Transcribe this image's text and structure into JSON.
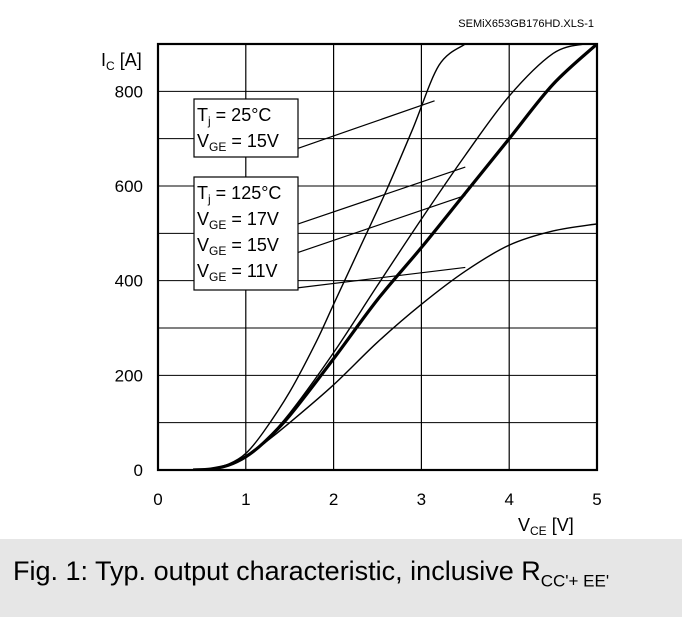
{
  "chart_data": {
    "type": "line",
    "file_id": "SEMiX653GB176HD.XLS-1",
    "xlabel_main": "V",
    "xlabel_sub": "CE",
    "xlabel_unit": " [V]",
    "ylabel_main": "I",
    "ylabel_sub": "C",
    "ylabel_unit": " [A]",
    "xlim": [
      0,
      5
    ],
    "ylim": [
      0,
      900
    ],
    "grid": true,
    "x_ticks": [
      "0",
      "1",
      "2",
      "3",
      "4",
      "5"
    ],
    "y_ticks": [
      "0",
      "200",
      "400",
      "600",
      "800"
    ],
    "annotations": [
      {
        "lines": [
          {
            "main": "T",
            "sub": "j",
            "rest": " = 25°C"
          },
          {
            "main": "V",
            "sub": "GE",
            "rest": " = 15V"
          }
        ]
      },
      {
        "lines": [
          {
            "main": "T",
            "sub": "j",
            "rest": " = 125°C"
          },
          {
            "main": "V",
            "sub": "GE",
            "rest": " = 17V"
          },
          {
            "main": "V",
            "sub": "GE",
            "rest": " = 15V"
          },
          {
            "main": "V",
            "sub": "GE",
            "rest": " = 11V"
          }
        ]
      }
    ],
    "series": [
      {
        "label_ref": "Tj = 25°C, VGE = 15V",
        "bold": false,
        "x": [
          0.4,
          0.6,
          0.8,
          1.0,
          1.2,
          1.5,
          1.8,
          2.0,
          2.3,
          2.6,
          2.9,
          3.2,
          3.5
        ],
        "y": [
          0,
          3,
          12,
          35,
          80,
          165,
          270,
          350,
          470,
          590,
          720,
          855,
          900
        ]
      },
      {
        "label_ref": "Tj = 125°C, VGE = 17V",
        "bold": false,
        "x": [
          0.4,
          0.6,
          0.8,
          1.0,
          1.2,
          1.5,
          2.0,
          2.5,
          3.0,
          3.5,
          4.0,
          4.5,
          4.85
        ],
        "y": [
          0,
          2,
          10,
          28,
          58,
          120,
          248,
          390,
          530,
          665,
          790,
          880,
          900
        ]
      },
      {
        "label_ref": "Tj = 125°C, VGE = 15V",
        "bold": true,
        "x": [
          0.4,
          0.6,
          0.8,
          1.0,
          1.2,
          1.5,
          2.0,
          2.5,
          3.0,
          3.5,
          4.0,
          4.5,
          5.0
        ],
        "y": [
          0,
          2,
          10,
          28,
          57,
          115,
          235,
          360,
          470,
          585,
          700,
          815,
          900
        ]
      },
      {
        "label_ref": "Tj = 125°C, VGE = 11V",
        "bold": false,
        "x": [
          0.4,
          0.6,
          0.8,
          1.0,
          1.2,
          1.5,
          2.0,
          2.5,
          3.0,
          3.5,
          4.0,
          4.5,
          5.0
        ],
        "y": [
          0,
          2,
          10,
          28,
          55,
          100,
          180,
          270,
          350,
          420,
          475,
          505,
          520
        ]
      }
    ],
    "leader_lines": [
      {
        "from": [
          1.6,
          680
        ],
        "to": [
          3.15,
          780
        ]
      },
      {
        "from": [
          1.6,
          520
        ],
        "to": [
          3.5,
          640
        ]
      },
      {
        "from": [
          1.6,
          460
        ],
        "to": [
          3.5,
          580
        ]
      },
      {
        "from": [
          1.6,
          385
        ],
        "to": [
          3.5,
          428
        ]
      }
    ]
  },
  "caption": {
    "text": "Fig. 1: Typ. output characteristic, inclusive R",
    "sub": "CC'+ EE'"
  }
}
